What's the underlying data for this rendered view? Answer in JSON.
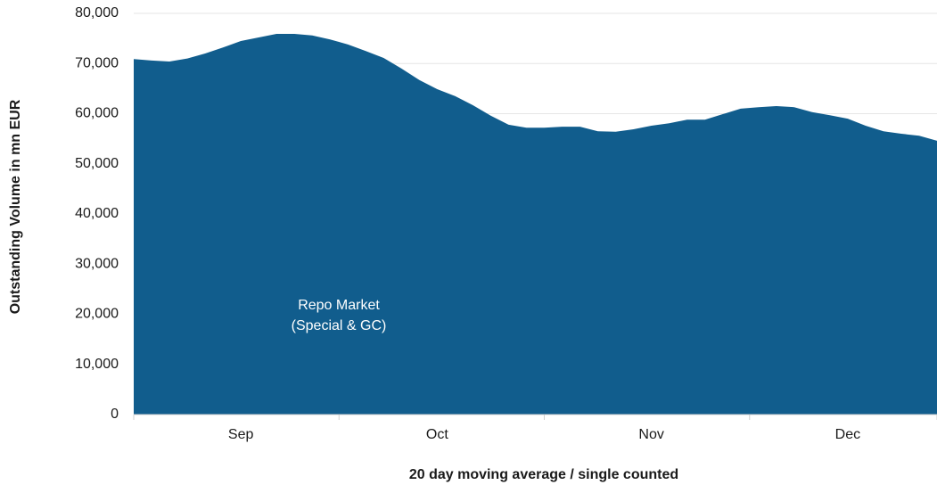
{
  "chart_data": {
    "type": "area",
    "x_label": "20 day moving average / single counted",
    "y_label": "Outstanding Volume in mn EUR",
    "annotation": [
      "Repo Market",
      "(Special & GC)"
    ],
    "color": "#115d8d",
    "categories": [
      null,
      null,
      null,
      null,
      null,
      null,
      "Sep",
      null,
      null,
      null,
      null,
      null,
      null,
      null,
      null,
      null,
      null,
      "Oct",
      null,
      null,
      null,
      null,
      null,
      null,
      null,
      null,
      null,
      null,
      null,
      "Nov",
      null,
      null,
      null,
      null,
      null,
      null,
      null,
      null,
      null,
      null,
      "Dec",
      null,
      null,
      null,
      null,
      null
    ],
    "values": [
      70900,
      70600,
      70400,
      71000,
      72000,
      73200,
      74500,
      75200,
      75900,
      75900,
      75600,
      74800,
      73800,
      72500,
      71100,
      69000,
      66700,
      64900,
      63500,
      61700,
      59600,
      57800,
      57200,
      57200,
      57400,
      57400,
      56500,
      56400,
      56900,
      57600,
      58100,
      58800,
      58800,
      59900,
      61000,
      61300,
      61500,
      61300,
      60300,
      59700,
      59000,
      57600,
      56500,
      56000,
      55600,
      54600
    ],
    "ylim": [
      0,
      80000
    ],
    "yticks": [
      0,
      {
        "value": 10000,
        "label": "10,000"
      },
      {
        "value": 20000,
        "label": "20,000"
      },
      {
        "value": 30000,
        "label": "30,000"
      },
      {
        "value": 40000,
        "label": "40,000"
      },
      {
        "value": 50000,
        "label": "50,000"
      },
      {
        "value": 60000,
        "label": "60,000"
      },
      {
        "value": 70000,
        "label": "70,000"
      },
      {
        "value": 80000,
        "label": "80,000"
      }
    ],
    "grid": true
  }
}
